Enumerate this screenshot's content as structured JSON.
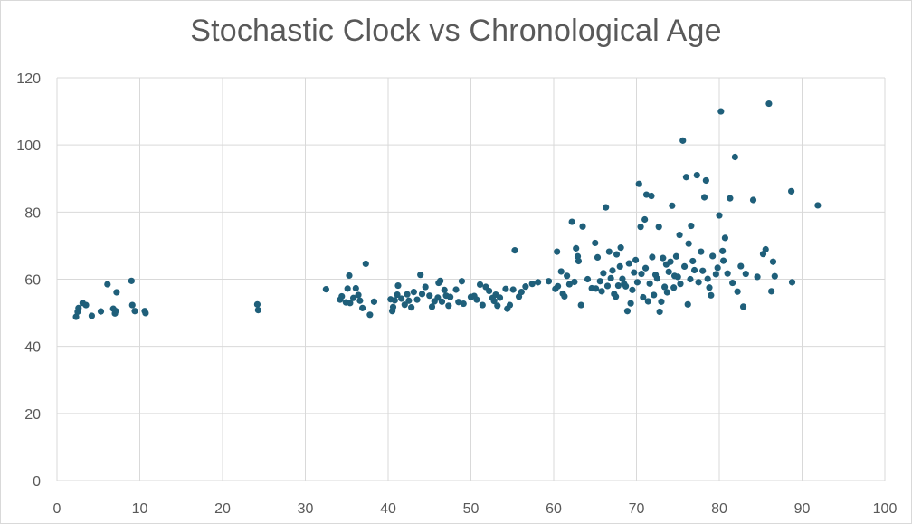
{
  "chart_data": {
    "type": "scatter",
    "title": "Stochastic Clock vs Chronological Age",
    "xlabel": "",
    "ylabel": "",
    "xlim": [
      0,
      100
    ],
    "ylim": [
      0,
      120
    ],
    "x_ticks": [
      0,
      10,
      20,
      30,
      40,
      50,
      60,
      70,
      80,
      90,
      100
    ],
    "y_ticks": [
      0,
      20,
      40,
      60,
      80,
      100,
      120
    ],
    "grid": true,
    "legend": "none",
    "marker_color": "#1f5f7a",
    "grid_color": "#d9d9d9",
    "series": [
      {
        "points": [
          [
            2.3,
            48.8
          ],
          [
            2.5,
            50.3
          ],
          [
            2.6,
            51.4
          ],
          [
            3.1,
            52.9
          ],
          [
            3.5,
            52.3
          ],
          [
            4.2,
            49.1
          ],
          [
            5.3,
            50.4
          ],
          [
            6.1,
            58.5
          ],
          [
            6.8,
            51.2
          ],
          [
            7.0,
            49.8
          ],
          [
            7.1,
            50.5
          ],
          [
            7.2,
            56.1
          ],
          [
            9.0,
            59.5
          ],
          [
            9.1,
            52.3
          ],
          [
            9.4,
            50.5
          ],
          [
            10.6,
            50.5
          ],
          [
            10.7,
            49.9
          ],
          [
            24.2,
            52.5
          ],
          [
            24.3,
            50.8
          ],
          [
            32.5,
            57.0
          ],
          [
            34.2,
            53.9
          ],
          [
            34.4,
            54.9
          ],
          [
            34.9,
            53.1
          ],
          [
            35.1,
            57.2
          ],
          [
            35.3,
            61.1
          ],
          [
            35.4,
            52.9
          ],
          [
            35.8,
            54.4
          ],
          [
            36.1,
            57.3
          ],
          [
            36.4,
            55.3
          ],
          [
            36.6,
            53.6
          ],
          [
            36.9,
            51.4
          ],
          [
            37.3,
            64.6
          ],
          [
            37.8,
            49.4
          ],
          [
            38.3,
            53.3
          ],
          [
            40.3,
            54.0
          ],
          [
            40.5,
            50.5
          ],
          [
            40.6,
            51.7
          ],
          [
            40.8,
            53.7
          ],
          [
            41.1,
            55.4
          ],
          [
            41.2,
            58.1
          ],
          [
            41.6,
            54.2
          ],
          [
            42.0,
            52.4
          ],
          [
            42.3,
            55.5
          ],
          [
            42.5,
            53.6
          ],
          [
            42.8,
            51.6
          ],
          [
            43.1,
            56.2
          ],
          [
            43.5,
            53.9
          ],
          [
            43.9,
            61.3
          ],
          [
            44.1,
            55.6
          ],
          [
            44.5,
            57.7
          ],
          [
            45.0,
            55.1
          ],
          [
            45.3,
            51.8
          ],
          [
            45.6,
            53.4
          ],
          [
            46.0,
            54.5
          ],
          [
            46.1,
            58.9
          ],
          [
            46.3,
            59.5
          ],
          [
            46.5,
            53.3
          ],
          [
            46.8,
            56.8
          ],
          [
            47.0,
            55.1
          ],
          [
            47.3,
            52.1
          ],
          [
            47.5,
            54.7
          ],
          [
            48.2,
            56.9
          ],
          [
            48.5,
            53.2
          ],
          [
            48.9,
            59.4
          ],
          [
            49.1,
            52.7
          ],
          [
            50.0,
            54.7
          ],
          [
            50.4,
            55.0
          ],
          [
            50.7,
            53.9
          ],
          [
            51.1,
            58.4
          ],
          [
            51.4,
            52.3
          ],
          [
            51.8,
            57.7
          ],
          [
            52.2,
            56.5
          ],
          [
            52.6,
            54.4
          ],
          [
            52.8,
            53.5
          ],
          [
            53.0,
            55.4
          ],
          [
            53.2,
            52.1
          ],
          [
            53.5,
            54.5
          ],
          [
            54.2,
            57.1
          ],
          [
            54.4,
            51.2
          ],
          [
            54.7,
            52.3
          ],
          [
            55.1,
            56.9
          ],
          [
            55.3,
            68.6
          ],
          [
            55.8,
            54.8
          ],
          [
            56.1,
            56.2
          ],
          [
            56.6,
            57.8
          ],
          [
            57.4,
            58.6
          ],
          [
            58.1,
            59.1
          ],
          [
            59.4,
            59.4
          ],
          [
            60.2,
            57.1
          ],
          [
            60.4,
            68.2
          ],
          [
            60.5,
            57.9
          ],
          [
            60.9,
            62.3
          ],
          [
            61.1,
            55.7
          ],
          [
            61.3,
            54.9
          ],
          [
            61.6,
            61.0
          ],
          [
            61.9,
            58.5
          ],
          [
            62.2,
            77.1
          ],
          [
            62.5,
            59.2
          ],
          [
            62.7,
            69.2
          ],
          [
            62.9,
            66.8
          ],
          [
            63.0,
            65.4
          ],
          [
            63.3,
            52.3
          ],
          [
            63.5,
            75.7
          ],
          [
            64.1,
            60.0
          ],
          [
            64.6,
            57.3
          ],
          [
            65.0,
            70.8
          ],
          [
            65.1,
            57.2
          ],
          [
            65.3,
            66.5
          ],
          [
            65.6,
            59.4
          ],
          [
            65.8,
            56.4
          ],
          [
            66.0,
            61.8
          ],
          [
            66.3,
            81.4
          ],
          [
            66.5,
            58.0
          ],
          [
            66.7,
            68.2
          ],
          [
            66.9,
            60.3
          ],
          [
            67.1,
            62.6
          ],
          [
            67.3,
            55.6
          ],
          [
            67.5,
            54.8
          ],
          [
            67.6,
            67.4
          ],
          [
            67.8,
            58.1
          ],
          [
            68.0,
            63.8
          ],
          [
            68.1,
            69.4
          ],
          [
            68.3,
            60.1
          ],
          [
            68.5,
            58.6
          ],
          [
            68.7,
            57.9
          ],
          [
            68.9,
            50.5
          ],
          [
            69.1,
            64.7
          ],
          [
            69.3,
            52.8
          ],
          [
            69.5,
            56.8
          ],
          [
            69.7,
            62.0
          ],
          [
            69.9,
            65.7
          ],
          [
            70.1,
            59.1
          ],
          [
            70.3,
            88.4
          ],
          [
            70.5,
            75.6
          ],
          [
            70.6,
            61.6
          ],
          [
            70.8,
            54.6
          ],
          [
            71.0,
            77.8
          ],
          [
            71.1,
            63.3
          ],
          [
            71.2,
            85.2
          ],
          [
            71.4,
            53.4
          ],
          [
            71.6,
            58.7
          ],
          [
            71.8,
            84.8
          ],
          [
            71.9,
            66.6
          ],
          [
            72.1,
            55.3
          ],
          [
            72.3,
            61.3
          ],
          [
            72.5,
            60.2
          ],
          [
            72.7,
            75.6
          ],
          [
            72.8,
            50.3
          ],
          [
            73.0,
            53.3
          ],
          [
            73.2,
            66.3
          ],
          [
            73.4,
            57.7
          ],
          [
            73.6,
            64.4
          ],
          [
            73.7,
            56.1
          ],
          [
            73.9,
            62.2
          ],
          [
            74.1,
            65.2
          ],
          [
            74.3,
            81.9
          ],
          [
            74.5,
            57.5
          ],
          [
            74.6,
            61.0
          ],
          [
            74.8,
            66.8
          ],
          [
            75.0,
            60.7
          ],
          [
            75.2,
            73.2
          ],
          [
            75.3,
            58.6
          ],
          [
            75.6,
            101.3
          ],
          [
            75.8,
            63.8
          ],
          [
            76.0,
            90.4
          ],
          [
            76.2,
            52.5
          ],
          [
            76.3,
            70.6
          ],
          [
            76.5,
            60.0
          ],
          [
            76.6,
            75.9
          ],
          [
            76.8,
            65.4
          ],
          [
            77.0,
            62.7
          ],
          [
            77.3,
            91.0
          ],
          [
            77.5,
            59.1
          ],
          [
            77.8,
            68.2
          ],
          [
            78.0,
            62.5
          ],
          [
            78.2,
            84.4
          ],
          [
            78.4,
            89.4
          ],
          [
            78.6,
            60.1
          ],
          [
            78.8,
            57.5
          ],
          [
            79.0,
            55.2
          ],
          [
            79.2,
            66.9
          ],
          [
            79.6,
            61.5
          ],
          [
            79.8,
            63.4
          ],
          [
            80.0,
            79.0
          ],
          [
            80.2,
            110.0
          ],
          [
            80.4,
            68.4
          ],
          [
            80.5,
            65.5
          ],
          [
            80.7,
            72.3
          ],
          [
            81.0,
            61.7
          ],
          [
            81.3,
            84.1
          ],
          [
            81.6,
            58.9
          ],
          [
            81.9,
            96.4
          ],
          [
            82.2,
            56.3
          ],
          [
            82.6,
            63.9
          ],
          [
            82.9,
            51.8
          ],
          [
            83.2,
            61.6
          ],
          [
            84.1,
            83.6
          ],
          [
            84.6,
            60.7
          ],
          [
            85.3,
            67.5
          ],
          [
            85.6,
            68.9
          ],
          [
            86.0,
            112.3
          ],
          [
            86.3,
            56.4
          ],
          [
            86.5,
            65.2
          ],
          [
            86.7,
            60.9
          ],
          [
            88.7,
            86.2
          ],
          [
            88.8,
            59.1
          ],
          [
            91.9,
            82.0
          ]
        ]
      }
    ]
  }
}
